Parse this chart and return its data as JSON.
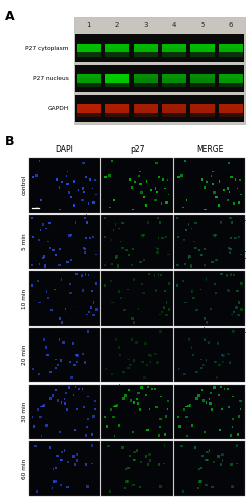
{
  "panel_A_label": "A",
  "panel_B_label": "B",
  "blot_labels": [
    "P27 cytoplasm",
    "P27 nucleus",
    "GAPDH"
  ],
  "lane_labels": [
    "1",
    "2",
    "3",
    "4",
    "5",
    "6"
  ],
  "green_band_color": "#00dd00",
  "red_band_color": "#cc2200",
  "col_headers": [
    "DAPI",
    "p27",
    "MERGE"
  ],
  "row_labels": [
    "control",
    "5 min",
    "10 min",
    "20 min",
    "30 min",
    "60 min"
  ],
  "dapi_color": "#3355ff",
  "p27_color": "#00cc00",
  "fig_bg": "#ffffff",
  "blot_area_bg": "#c8c4be",
  "blot_strip_bg": "#0a0a0a",
  "micro_bg_dark": "#030508",
  "micro_bg_texture": "#060c0a",
  "cell_border_color": "#777777",
  "p27_brightness": [
    0.9,
    0.4,
    0.35,
    0.25,
    0.8,
    0.42
  ],
  "dapi_brightness": [
    0.85,
    0.78,
    0.72,
    0.72,
    0.75,
    0.7
  ],
  "n_cells_per_row": [
    28,
    32,
    26,
    22,
    35,
    24
  ]
}
